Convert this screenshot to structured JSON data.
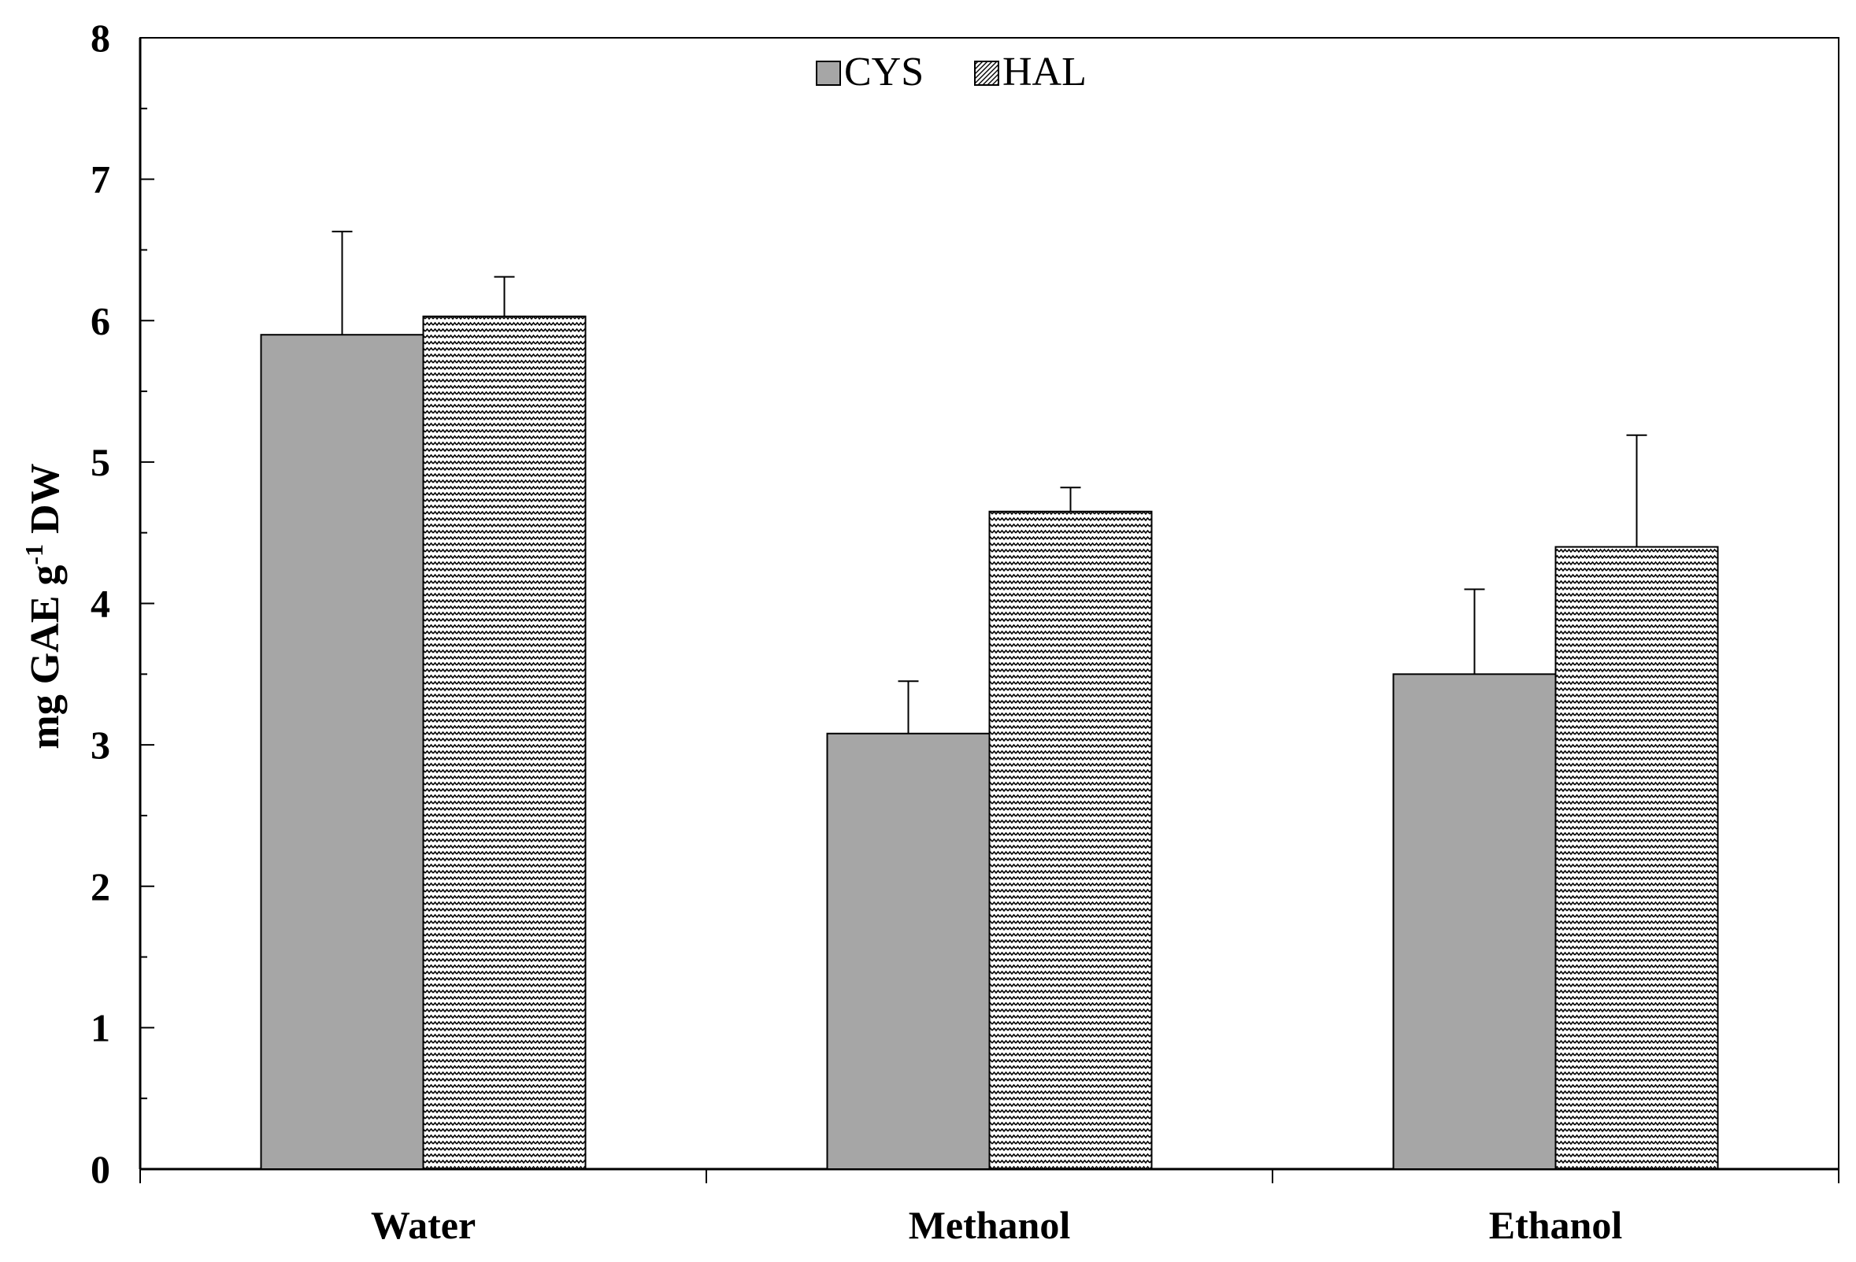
{
  "chart_data": {
    "type": "bar",
    "categories": [
      "Water",
      "Methanol",
      "Ethanol"
    ],
    "series": [
      {
        "name": "CYS",
        "values": [
          5.9,
          3.08,
          3.5
        ],
        "errors": [
          0.73,
          0.37,
          0.6
        ],
        "fill": "#a6a6a6",
        "pattern": "solid"
      },
      {
        "name": "HAL",
        "values": [
          6.03,
          4.65,
          4.4
        ],
        "errors": [
          0.28,
          0.17,
          0.79
        ],
        "fill": "#ffffff",
        "pattern": "zigzag"
      }
    ],
    "title": "",
    "xlabel": "",
    "ylabel": {
      "main": "mg GAE g",
      "superscript": "-1",
      "suffix": " DW"
    },
    "ylim": [
      0,
      8
    ],
    "yticks": [
      "0",
      "1",
      "2",
      "3",
      "4",
      "5",
      "6",
      "7",
      "8"
    ],
    "grid": false,
    "legend_position": "top-center"
  }
}
